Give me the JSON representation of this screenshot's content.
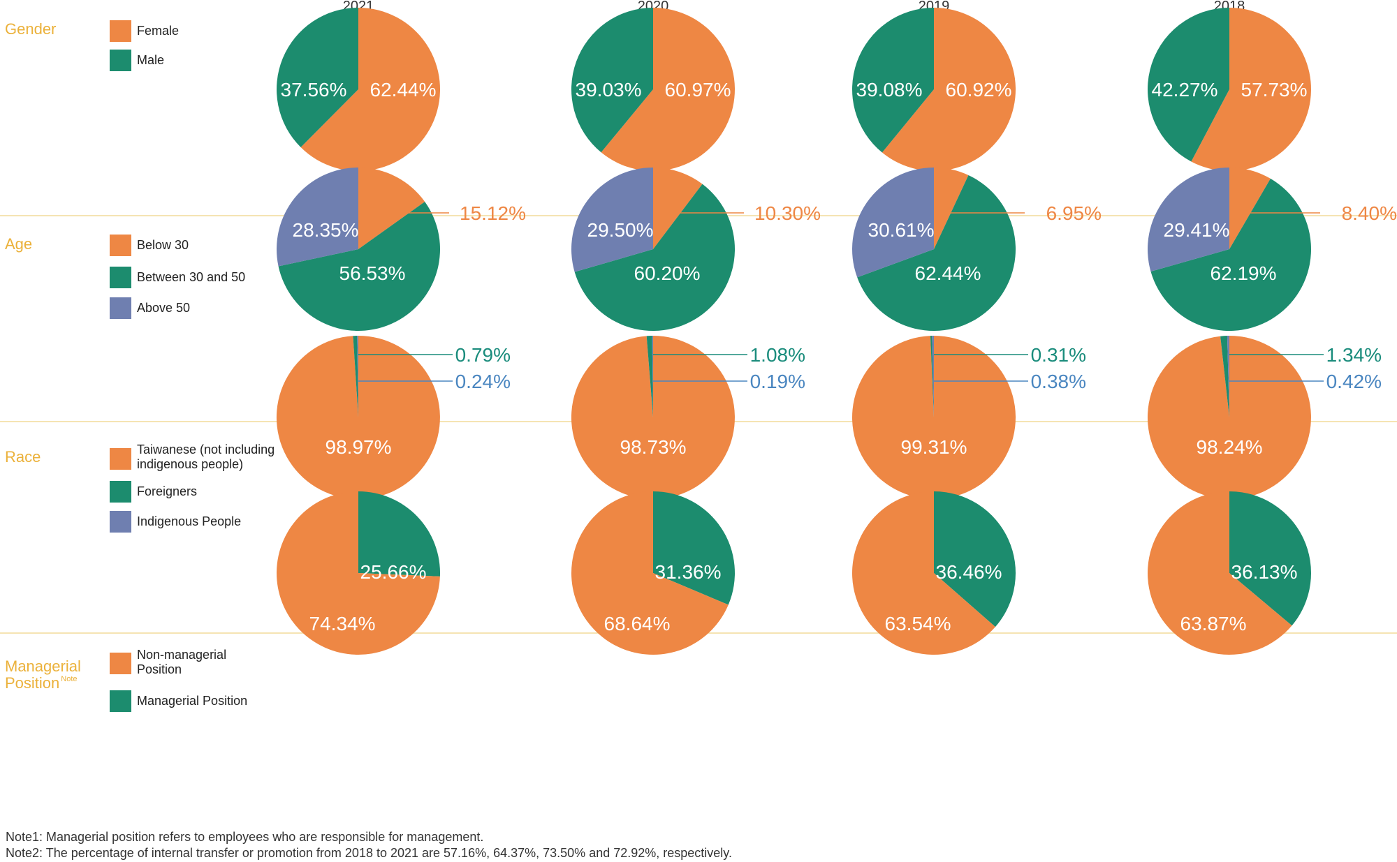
{
  "colors": {
    "orange": "#EE8744",
    "green": "#1C8C6E",
    "purple": "#6F7FB0",
    "gold": "#EBB13A",
    "teal_text": "#1A8C7C",
    "blue_text": "#4A86C0",
    "divider": "#F2DC9A",
    "legend_text": "#222222",
    "year_text": "#333333"
  },
  "years": [
    "2021",
    "2020",
    "2019",
    "2018"
  ],
  "chart_data": [
    {
      "type": "pie",
      "title": "Gender",
      "legend": [
        {
          "label": "Female",
          "color": "orange"
        },
        {
          "label": "Male",
          "color": "green"
        }
      ],
      "pies": [
        {
          "year": "2021",
          "slices": [
            {
              "name": "Female",
              "value": 62.44,
              "label": "62.44%"
            },
            {
              "name": "Male",
              "value": 37.56,
              "label": "37.56%"
            }
          ]
        },
        {
          "year": "2020",
          "slices": [
            {
              "name": "Female",
              "value": 60.97,
              "label": "60.97%"
            },
            {
              "name": "Male",
              "value": 39.03,
              "label": "39.03%"
            }
          ]
        },
        {
          "year": "2019",
          "slices": [
            {
              "name": "Female",
              "value": 60.92,
              "label": "60.92%"
            },
            {
              "name": "Male",
              "value": 39.08,
              "label": "39.08%"
            }
          ]
        },
        {
          "year": "2018",
          "slices": [
            {
              "name": "Female",
              "value": 57.73,
              "label": "57.73%"
            },
            {
              "name": "Male",
              "value": 42.27,
              "label": "42.27%"
            }
          ]
        }
      ]
    },
    {
      "type": "pie",
      "title": "Age",
      "legend": [
        {
          "label": "Below 30",
          "color": "orange"
        },
        {
          "label": "Between 30 and 50",
          "color": "green"
        },
        {
          "label": "Above 50",
          "color": "purple"
        }
      ],
      "pies": [
        {
          "year": "2021",
          "slices": [
            {
              "name": "Below 30",
              "value": 15.12,
              "label": "15.12%"
            },
            {
              "name": "Between 30 and 50",
              "value": 56.53,
              "label": "56.53%"
            },
            {
              "name": "Above 50",
              "value": 28.35,
              "label": "28.35%"
            }
          ]
        },
        {
          "year": "2020",
          "slices": [
            {
              "name": "Below 30",
              "value": 10.3,
              "label": "10.30%"
            },
            {
              "name": "Between 30 and 50",
              "value": 60.2,
              "label": "60.20%"
            },
            {
              "name": "Above 50",
              "value": 29.5,
              "label": "29.50%"
            }
          ]
        },
        {
          "year": "2019",
          "slices": [
            {
              "name": "Below 30",
              "value": 6.95,
              "label": "6.95%"
            },
            {
              "name": "Between 30 and 50",
              "value": 62.44,
              "label": "62.44%"
            },
            {
              "name": "Above 50",
              "value": 30.61,
              "label": "30.61%"
            }
          ]
        },
        {
          "year": "2018",
          "slices": [
            {
              "name": "Below 30",
              "value": 8.4,
              "label": "8.40%"
            },
            {
              "name": "Between 30 and 50",
              "value": 62.19,
              "label": "62.19%"
            },
            {
              "name": "Above 50",
              "value": 29.41,
              "label": "29.41%"
            }
          ]
        }
      ]
    },
    {
      "type": "pie",
      "title": "Race",
      "legend": [
        {
          "label": "Taiwanese (not including indigenous people)",
          "lines": [
            "Taiwanese (not including",
            "indigenous people)"
          ],
          "color": "orange"
        },
        {
          "label": "Foreigners",
          "color": "green"
        },
        {
          "label": "Indigenous People",
          "color": "purple"
        }
      ],
      "pies": [
        {
          "year": "2021",
          "slices": [
            {
              "name": "Foreigners",
              "value": 0.79,
              "label": "0.79%"
            },
            {
              "name": "Indigenous People",
              "value": 0.24,
              "label": "0.24%"
            },
            {
              "name": "Taiwanese",
              "value": 98.97,
              "label": "98.97%"
            }
          ]
        },
        {
          "year": "2020",
          "slices": [
            {
              "name": "Foreigners",
              "value": 1.08,
              "label": "1.08%"
            },
            {
              "name": "Indigenous People",
              "value": 0.19,
              "label": "0.19%"
            },
            {
              "name": "Taiwanese",
              "value": 98.73,
              "label": "98.73%"
            }
          ]
        },
        {
          "year": "2019",
          "slices": [
            {
              "name": "Foreigners",
              "value": 0.31,
              "label": "0.31%"
            },
            {
              "name": "Indigenous People",
              "value": 0.38,
              "label": "0.38%"
            },
            {
              "name": "Taiwanese",
              "value": 99.31,
              "label": "99.31%"
            }
          ]
        },
        {
          "year": "2018",
          "slices": [
            {
              "name": "Foreigners",
              "value": 1.34,
              "label": "1.34%"
            },
            {
              "name": "Indigenous People",
              "value": 0.42,
              "label": "0.42%"
            },
            {
              "name": "Taiwanese",
              "value": 98.24,
              "label": "98.24%"
            }
          ]
        }
      ]
    },
    {
      "type": "pie",
      "title": "Managerial Position",
      "title_lines": [
        "Managerial",
        "Position"
      ],
      "title_sup": "Note",
      "legend": [
        {
          "label": "Non-managerial Position",
          "lines": [
            "Non-managerial",
            "Position"
          ],
          "color": "orange"
        },
        {
          "label": "Managerial Position",
          "color": "green"
        }
      ],
      "pies": [
        {
          "year": "2021",
          "slices": [
            {
              "name": "Managerial Position",
              "value": 25.66,
              "label": "25.66%"
            },
            {
              "name": "Non-managerial Position",
              "value": 74.34,
              "label": "74.34%"
            }
          ]
        },
        {
          "year": "2020",
          "slices": [
            {
              "name": "Managerial Position",
              "value": 31.36,
              "label": "31.36%"
            },
            {
              "name": "Non-managerial Position",
              "value": 68.64,
              "label": "68.64%"
            }
          ]
        },
        {
          "year": "2019",
          "slices": [
            {
              "name": "Managerial Position",
              "value": 36.46,
              "label": "36.46%"
            },
            {
              "name": "Non-managerial Position",
              "value": 63.54,
              "label": "63.54%"
            }
          ]
        },
        {
          "year": "2018",
          "slices": [
            {
              "name": "Managerial Position",
              "value": 36.13,
              "label": "36.13%"
            },
            {
              "name": "Non-managerial Position",
              "value": 63.87,
              "label": "63.87%"
            }
          ]
        }
      ]
    }
  ],
  "notes": {
    "note1": "Note1: Managerial position refers to employees who are responsible for management.",
    "note2": "Note2: The percentage of internal transfer or promotion from 2018 to 2021 are 57.16%, 64.37%, 73.50% and 72.92%, respectively."
  }
}
